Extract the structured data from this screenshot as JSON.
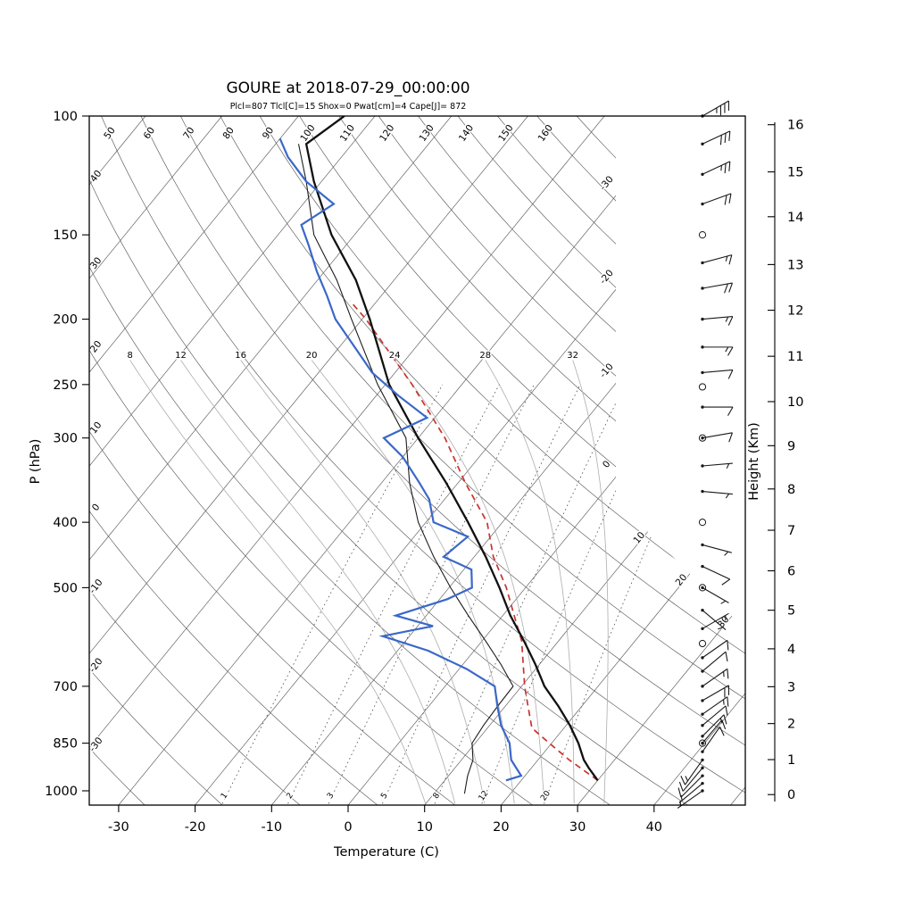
{
  "title": "GOURE at 2018-07-29_00:00:00",
  "stats_line": "Plcl=807 Tlcl[C]=15 Shox=0 Pwat[cm]=4 Cape[J]= 872",
  "axes": {
    "pressure_label": "P (hPa)",
    "temperature_label": "Temperature (C)",
    "height_label": "Height (Km)",
    "pressure_ticks": [
      100,
      150,
      200,
      250,
      300,
      400,
      500,
      700,
      850,
      1000
    ],
    "temperature_ticks": [
      -30,
      -20,
      -10,
      0,
      10,
      20,
      30,
      40
    ],
    "height_ticks": [
      0,
      1,
      2,
      3,
      4,
      5,
      6,
      7,
      8,
      9,
      10,
      11,
      12,
      13,
      14,
      15,
      16
    ]
  },
  "colors": {
    "temperature_curve": "#111111",
    "dewpoint_curve": "#3A68C8",
    "parcel_curve": "#C9342E",
    "aux_curve": "#1c1c1c",
    "stats_text": "#C0492F",
    "grid": "#5a5a5a",
    "moist_adiabat": "#ADADAD",
    "mixing_ratio": "#454545",
    "frame": "#000000",
    "wind": "#1a1a1a"
  },
  "chart_data": {
    "type": "skewt-logp",
    "station": "GOURE",
    "datetime": "2018-07-29_00:00:00",
    "indices": {
      "Plcl": 807,
      "Tlcl_C": 15,
      "Shox": 0,
      "Pwat_cm": 4,
      "Cape_J": 872
    },
    "pressure_range_hpa": [
      100,
      1050
    ],
    "temperature_axis_range_c": [
      -30,
      40
    ],
    "isotherms_c": [
      -110,
      -100,
      -90,
      -80,
      -70,
      -60,
      -50,
      -40,
      -30,
      -20,
      -10,
      0,
      10,
      20,
      30,
      40,
      50
    ],
    "dry_adiabats_c": [
      -30,
      -20,
      -10,
      0,
      10,
      20,
      30,
      40,
      50,
      60,
      70,
      80,
      90,
      100,
      110,
      120,
      130,
      140,
      150,
      160,
      170
    ],
    "dry_adiabat_label_values_left": [
      40,
      30,
      20,
      10,
      0,
      -10,
      -20,
      -30
    ],
    "dry_adiabat_label_values_top": [
      50,
      60,
      70,
      80,
      90,
      100,
      110,
      120,
      130,
      140,
      150,
      160
    ],
    "moist_adiabats_c": [
      8,
      12,
      16,
      20,
      24,
      28,
      32
    ],
    "mixing_ratio_g_kg": [
      1,
      2,
      3,
      5,
      8,
      12,
      20
    ],
    "cut_isotherm_labels": [
      -30,
      -20,
      -10,
      0,
      10,
      20,
      30
    ],
    "temperature_profile": [
      [
        965,
        30
      ],
      [
        925,
        27.5
      ],
      [
        900,
        26
      ],
      [
        850,
        23.5
      ],
      [
        800,
        20.5
      ],
      [
        750,
        17
      ],
      [
        700,
        13
      ],
      [
        650,
        9.5
      ],
      [
        600,
        5.5
      ],
      [
        550,
        1
      ],
      [
        500,
        -3.4
      ],
      [
        450,
        -8.5
      ],
      [
        400,
        -14.5
      ],
      [
        350,
        -21.5
      ],
      [
        300,
        -30
      ],
      [
        250,
        -39.5
      ],
      [
        200,
        -49
      ],
      [
        175,
        -55
      ],
      [
        150,
        -63
      ],
      [
        125,
        -71
      ],
      [
        110,
        -76
      ],
      [
        100,
        -74
      ]
    ],
    "dewpoint_profile": [
      [
        965,
        18
      ],
      [
        950,
        19.5
      ],
      [
        900,
        16.5
      ],
      [
        850,
        14.5
      ],
      [
        800,
        11.5
      ],
      [
        750,
        9
      ],
      [
        700,
        6.5
      ],
      [
        660,
        1
      ],
      [
        620,
        -6
      ],
      [
        590,
        -13.5
      ],
      [
        570,
        -8
      ],
      [
        550,
        -14
      ],
      [
        520,
        -9
      ],
      [
        500,
        -7
      ],
      [
        470,
        -9
      ],
      [
        450,
        -14
      ],
      [
        420,
        -13
      ],
      [
        400,
        -19
      ],
      [
        370,
        -22
      ],
      [
        350,
        -25
      ],
      [
        320,
        -30
      ],
      [
        300,
        -34.5
      ],
      [
        280,
        -31
      ],
      [
        260,
        -37
      ],
      [
        240,
        -43
      ],
      [
        220,
        -48
      ],
      [
        200,
        -53.5
      ],
      [
        185,
        -57
      ],
      [
        170,
        -61
      ],
      [
        155,
        -65
      ],
      [
        145,
        -68
      ],
      [
        135,
        -66
      ],
      [
        125,
        -72
      ],
      [
        115,
        -77
      ],
      [
        108,
        -80
      ]
    ],
    "parcel_profile": [
      [
        965,
        30
      ],
      [
        900,
        24.1
      ],
      [
        850,
        19.7
      ],
      [
        807,
        15.8
      ],
      [
        750,
        13
      ],
      [
        700,
        10.4
      ],
      [
        650,
        7.9
      ],
      [
        600,
        5.2
      ],
      [
        550,
        1.5
      ],
      [
        500,
        -2.5
      ],
      [
        450,
        -7.5
      ],
      [
        400,
        -12
      ],
      [
        350,
        -19
      ],
      [
        300,
        -26.5
      ],
      [
        250,
        -36.5
      ],
      [
        200,
        -49.5
      ],
      [
        188,
        -53.5
      ]
    ],
    "aux_profile": [
      [
        1010,
        14
      ],
      [
        950,
        12.5
      ],
      [
        900,
        11.5
      ],
      [
        850,
        9.6
      ],
      [
        800,
        9.2
      ],
      [
        750,
        9
      ],
      [
        700,
        8.9
      ],
      [
        650,
        5
      ],
      [
        600,
        0.5
      ],
      [
        550,
        -4.5
      ],
      [
        500,
        -9.8
      ],
      [
        450,
        -15.3
      ],
      [
        400,
        -21
      ],
      [
        350,
        -26.3
      ],
      [
        300,
        -31.6
      ],
      [
        250,
        -41
      ],
      [
        200,
        -51.4
      ],
      [
        175,
        -57.5
      ],
      [
        150,
        -65.3
      ],
      [
        125,
        -72
      ],
      [
        110,
        -77
      ]
    ],
    "winds": [
      {
        "p": 100,
        "spd": 35,
        "dir": 60,
        "marker": "barb"
      },
      {
        "p": 110,
        "spd": 30,
        "dir": 65,
        "marker": "barb"
      },
      {
        "p": 122,
        "spd": 25,
        "dir": 65,
        "marker": "barb"
      },
      {
        "p": 135,
        "spd": 20,
        "dir": 70,
        "marker": "barb"
      },
      {
        "p": 150,
        "spd": 0,
        "dir": 0,
        "marker": "calm"
      },
      {
        "p": 165,
        "spd": 15,
        "dir": 75,
        "marker": "barb"
      },
      {
        "p": 180,
        "spd": 20,
        "dir": 80,
        "marker": "barb"
      },
      {
        "p": 200,
        "spd": 15,
        "dir": 85,
        "marker": "barb"
      },
      {
        "p": 220,
        "spd": 15,
        "dir": 90,
        "marker": "barb"
      },
      {
        "p": 240,
        "spd": 10,
        "dir": 85,
        "marker": "barb"
      },
      {
        "p": 252,
        "spd": 0,
        "dir": 0,
        "marker": "calm"
      },
      {
        "p": 270,
        "spd": 10,
        "dir": 90,
        "marker": "barb"
      },
      {
        "p": 300,
        "spd": 10,
        "dir": 80,
        "marker": "ring"
      },
      {
        "p": 330,
        "spd": 5,
        "dir": 85,
        "marker": "barb"
      },
      {
        "p": 360,
        "spd": 5,
        "dir": 95,
        "marker": "barb"
      },
      {
        "p": 400,
        "spd": 0,
        "dir": 0,
        "marker": "calm"
      },
      {
        "p": 432,
        "spd": 5,
        "dir": 105,
        "marker": "barb"
      },
      {
        "p": 465,
        "spd": 10,
        "dir": 115,
        "marker": "barb"
      },
      {
        "p": 500,
        "spd": 5,
        "dir": 120,
        "marker": "ring"
      },
      {
        "p": 540,
        "spd": 5,
        "dir": 130,
        "marker": "barb"
      },
      {
        "p": 575,
        "spd": 5,
        "dir": 60,
        "marker": "barb"
      },
      {
        "p": 605,
        "spd": 0,
        "dir": 0,
        "marker": "calm"
      },
      {
        "p": 635,
        "spd": 8,
        "dir": 55,
        "marker": "barb"
      },
      {
        "p": 665,
        "spd": 10,
        "dir": 50,
        "marker": "barb"
      },
      {
        "p": 700,
        "spd": 15,
        "dir": 55,
        "marker": "barb"
      },
      {
        "p": 735,
        "spd": 20,
        "dir": 60,
        "marker": "barb"
      },
      {
        "p": 770,
        "spd": 15,
        "dir": 55,
        "marker": "barb"
      },
      {
        "p": 800,
        "spd": 10,
        "dir": 50,
        "marker": "barb"
      },
      {
        "p": 830,
        "spd": 15,
        "dir": 45,
        "marker": "barb"
      },
      {
        "p": 850,
        "spd": 10,
        "dir": 40,
        "marker": "ring"
      },
      {
        "p": 875,
        "spd": 10,
        "dir": 35,
        "marker": "barb"
      },
      {
        "p": 900,
        "spd": 15,
        "dir": 215,
        "marker": "barb"
      },
      {
        "p": 925,
        "spd": 10,
        "dir": 220,
        "marker": "barb"
      },
      {
        "p": 950,
        "spd": 10,
        "dir": 225,
        "marker": "barb"
      },
      {
        "p": 975,
        "spd": 5,
        "dir": 230,
        "marker": "barb"
      },
      {
        "p": 1000,
        "spd": 5,
        "dir": 235,
        "marker": "barb"
      }
    ],
    "height_km_pressures": [
      [
        0,
        1013
      ],
      [
        1,
        899
      ],
      [
        2,
        795
      ],
      [
        3,
        701
      ],
      [
        4,
        616
      ],
      [
        5,
        540
      ],
      [
        6,
        472
      ],
      [
        7,
        411
      ],
      [
        8,
        357
      ],
      [
        9,
        308
      ],
      [
        10,
        265
      ],
      [
        11,
        227
      ],
      [
        12,
        194
      ],
      [
        13,
        166
      ],
      [
        14,
        141
      ],
      [
        15,
        121
      ],
      [
        16,
        103
      ]
    ]
  }
}
